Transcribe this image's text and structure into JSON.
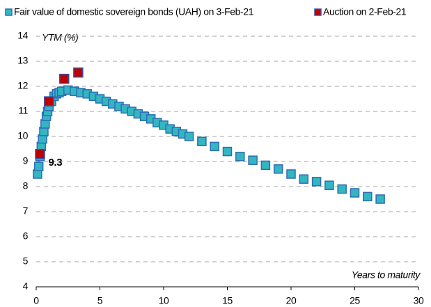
{
  "chart_data": {
    "type": "scatter",
    "xlabel": "Years to maturity",
    "ylabel": "YTM (%)",
    "xlim": [
      0,
      30
    ],
    "xticks": [
      0,
      5,
      10,
      15,
      20,
      25,
      30
    ],
    "ylim": [
      4,
      14
    ],
    "yticks": [
      4,
      5,
      6,
      7,
      8,
      9,
      10,
      11,
      12,
      13,
      14
    ],
    "grid": true,
    "legend": "top",
    "series": [
      {
        "name": "Fair value of domestic sovereign bonds (UAH) on 3-Feb-21",
        "color": "#33b6c2",
        "edge": "#2e6db4",
        "x": [
          0.1,
          0.2,
          0.3,
          0.4,
          0.5,
          0.6,
          0.7,
          0.8,
          0.9,
          1.0,
          1.2,
          1.4,
          1.6,
          1.8,
          2.0,
          2.5,
          3.0,
          3.5,
          4.0,
          4.5,
          5.0,
          5.5,
          6.0,
          6.5,
          7.0,
          7.5,
          8.0,
          8.5,
          9.0,
          9.5,
          10.0,
          10.5,
          11.0,
          11.5,
          12.0,
          13.0,
          14.0,
          15.0,
          16.0,
          17.0,
          18.0,
          19.0,
          20.0,
          21.0,
          22.0,
          23.0,
          24.0,
          25.0,
          26.0,
          27.0
        ],
        "values": [
          8.5,
          8.8,
          9.2,
          9.6,
          9.9,
          10.2,
          10.5,
          10.8,
          11.0,
          11.2,
          11.4,
          11.6,
          11.7,
          11.75,
          11.8,
          11.85,
          11.8,
          11.75,
          11.7,
          11.6,
          11.5,
          11.4,
          11.3,
          11.2,
          11.1,
          11.0,
          10.9,
          10.8,
          10.7,
          10.55,
          10.45,
          10.3,
          10.2,
          10.1,
          10.0,
          9.8,
          9.6,
          9.4,
          9.2,
          9.05,
          8.85,
          8.7,
          8.5,
          8.3,
          8.2,
          8.05,
          7.9,
          7.75,
          7.6,
          7.5
        ]
      },
      {
        "name": "Auction on 2-Feb-21",
        "color": "#c00000",
        "edge": "#3a4fa0",
        "x": [
          0.3,
          1.0,
          2.2,
          3.3
        ],
        "values": [
          9.3,
          11.4,
          12.3,
          12.55
        ],
        "value_labels": [
          "9.3",
          null,
          null,
          null
        ]
      }
    ]
  }
}
